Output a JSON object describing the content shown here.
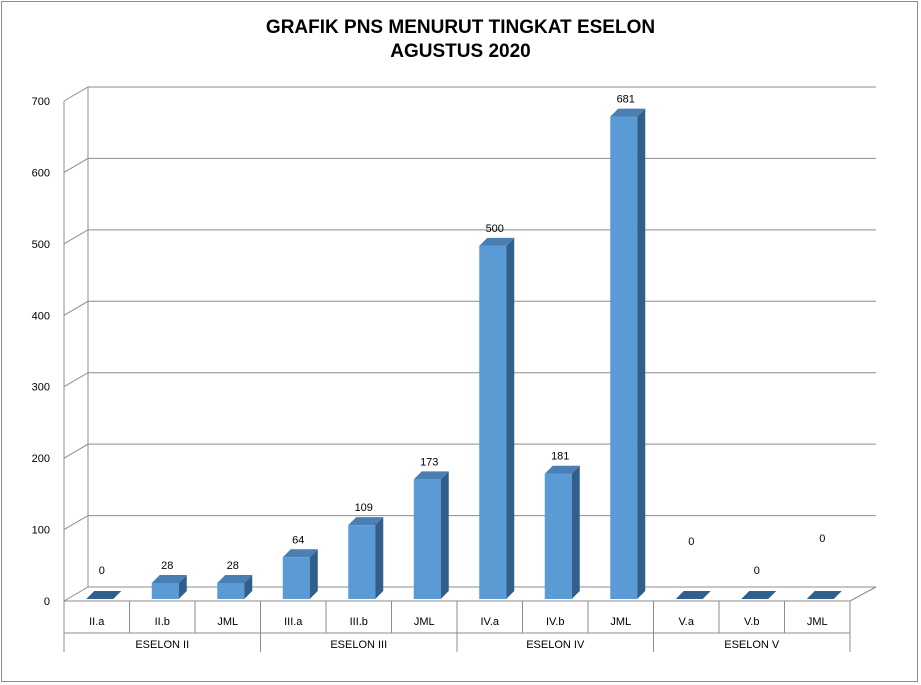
{
  "chart_data": {
    "type": "bar",
    "title": [
      "GRAFIK PNS MENURUT TINGKAT ESELON",
      "AGUSTUS 2020"
    ],
    "categories": [
      "II.a",
      "II.b",
      "JML",
      "III.a",
      "III.b",
      "JML",
      "IV.a",
      "IV.b",
      "JML",
      "V.a",
      "V.b",
      "JML"
    ],
    "groups": [
      {
        "label": "ESELON II",
        "count": 3
      },
      {
        "label": "ESELON III",
        "count": 3
      },
      {
        "label": "ESELON IV",
        "count": 3
      },
      {
        "label": "ESELON V",
        "count": 3
      }
    ],
    "values": [
      0,
      28,
      28,
      64,
      109,
      173,
      500,
      181,
      681,
      0,
      0,
      0
    ],
    "ylim": [
      0,
      700
    ],
    "yticks": [
      0,
      100,
      200,
      300,
      400,
      500,
      600,
      700
    ],
    "grid": true,
    "three_d": true,
    "bar_color": "#5b9bd5",
    "bar_side_color": "#2f5f8a",
    "bar_top_color": "#4a7fb3"
  }
}
